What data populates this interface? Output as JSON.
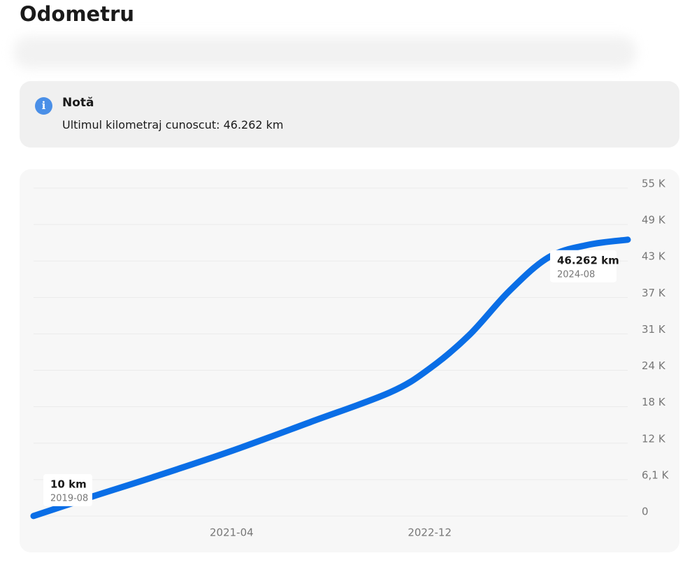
{
  "header": {
    "title": "Odometru"
  },
  "note": {
    "title": "Notă",
    "text": "Ultimul kilometraj cunoscut: 46.262 km"
  },
  "chart_data": {
    "type": "line",
    "x": [
      "2019-08",
      "2020-02",
      "2020-08",
      "2021-04",
      "2021-12",
      "2022-08",
      "2022-12",
      "2023-04",
      "2023-08",
      "2023-12",
      "2024-04",
      "2024-08"
    ],
    "series": [
      {
        "color": "#0a6ee6",
        "values": [
          10,
          3300,
          6470,
          10900,
          15760,
          20700,
          24700,
          30300,
          37600,
          43300,
          45400,
          46262
        ],
        "value_labels": [
          "10 km",
          null,
          null,
          null,
          null,
          null,
          null,
          null,
          null,
          null,
          null,
          "46.262 km"
        ]
      }
    ],
    "xlim": [
      "2019-08",
      "2024-08"
    ],
    "xticks": [
      "2021-04",
      "2022-12"
    ],
    "ylim": [
      0,
      54900
    ],
    "yticks": [
      0,
      {
        "value": 6100,
        "label": "6,1 K"
      },
      {
        "value": 12200,
        "label": "12 K"
      },
      {
        "value": 18300,
        "label": "18 K"
      },
      {
        "value": 24400,
        "label": "24 K"
      },
      {
        "value": 30500,
        "label": "31 K"
      },
      {
        "value": 36600,
        "label": "37 K"
      },
      {
        "value": 42700,
        "label": "43 K"
      },
      {
        "value": 48800,
        "label": "49 K"
      },
      {
        "value": 54900,
        "label": "55 K"
      }
    ],
    "grid": true
  }
}
